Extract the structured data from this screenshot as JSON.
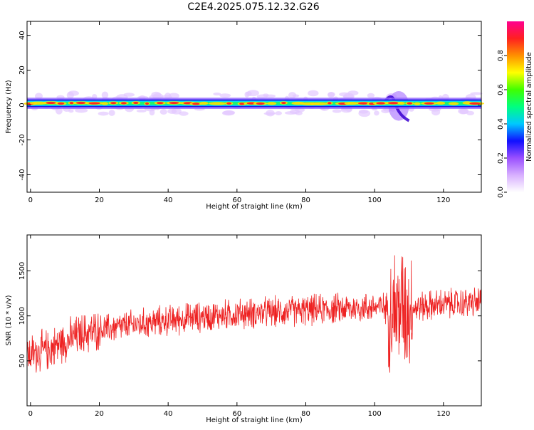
{
  "title": "C2E4.2025.075.12.32.G26",
  "chart_data": [
    {
      "type": "heatmap",
      "xlabel": "Height of straight line (km)",
      "ylabel": "Frequency (Hz)",
      "xlim": [
        -1,
        131
      ],
      "ylim": [
        -50,
        48
      ],
      "xticks": [
        0,
        20,
        40,
        60,
        80,
        100,
        120
      ],
      "yticks": [
        -40,
        -20,
        0,
        20,
        40
      ],
      "colorbar": {
        "label": "Normalized spectral amplitude",
        "range": [
          0.0,
          1.0
        ],
        "ticks": [
          0.0,
          0.2,
          0.4,
          0.6,
          0.8
        ],
        "colors": [
          "#ffffff",
          "#d8b0ff",
          "#9a50ff",
          "#1010ff",
          "#00c8ff",
          "#00ff80",
          "#40ff00",
          "#ffff00",
          "#ff9000",
          "#ff2020",
          "#ff0090"
        ]
      },
      "signal_band": {
        "center_hz": 1.0,
        "halfwidth_hz": 2.0,
        "excursion_km": [
          104,
          110
        ],
        "excursion_hz": [
          -9,
          8
        ]
      }
    },
    {
      "type": "line",
      "xlabel": "Height of straight line (km)",
      "ylabel": "SNR (10 * v/v)",
      "xlim": [
        -1,
        131
      ],
      "ylim": [
        0,
        1900
      ],
      "xticks": [
        0,
        20,
        40,
        60,
        80,
        100,
        120
      ],
      "yticks": [
        500,
        1000,
        1500
      ],
      "color": "#ee2222",
      "series": [
        {
          "x": [
            -1,
            5,
            10,
            15,
            20,
            25,
            30,
            40,
            50,
            60,
            70,
            80,
            90,
            100,
            104,
            106,
            108,
            110,
            115,
            120,
            125,
            130
          ],
          "values": [
            560,
            620,
            720,
            800,
            840,
            870,
            900,
            950,
            990,
            1020,
            1040,
            1060,
            1080,
            1100,
            1090,
            1060,
            1100,
            1080,
            1110,
            1130,
            1140,
            1150
          ]
        }
      ]
    }
  ]
}
